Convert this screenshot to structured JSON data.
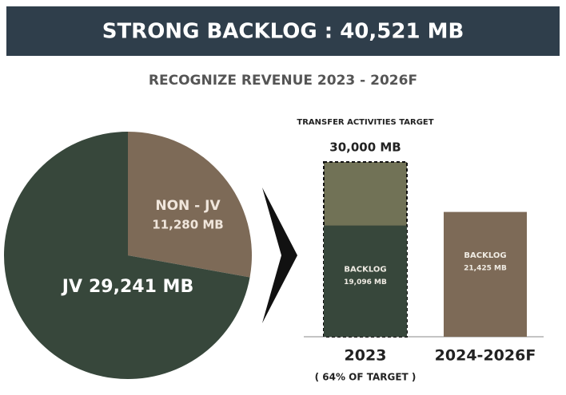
{
  "header": {
    "title": "STRONG BACKLOG : 40,521 MB",
    "subtitle": "RECOGNIZE REVENUE 2023 - 2026F"
  },
  "chart_data": [
    {
      "type": "pie",
      "categories": [
        "NON - JV",
        "JV"
      ],
      "values": [
        11280,
        29241
      ],
      "value_labels": [
        "11,280 MB",
        "29,241 MB"
      ],
      "colors": [
        "#7d6a57",
        "#37473b"
      ]
    },
    {
      "type": "bar",
      "categories": [
        "2023",
        "2024-2026F"
      ],
      "series": [
        {
          "name": "TRANSFER ACTIVITIES TARGET",
          "color": "#717256",
          "values": [
            30000,
            null
          ],
          "value_labels": [
            "30,000 MB",
            null
          ]
        },
        {
          "name": "BACKLOG",
          "color": "#37473b",
          "values": [
            19096,
            null
          ],
          "value_labels": [
            "19,096 MB",
            null
          ]
        },
        {
          "name": "BACKLOG",
          "color": "#7d6a57",
          "values": [
            null,
            21425
          ],
          "value_labels": [
            null,
            "21,425 MB"
          ]
        }
      ],
      "annotation": "( 64% OF TARGET )"
    }
  ]
}
